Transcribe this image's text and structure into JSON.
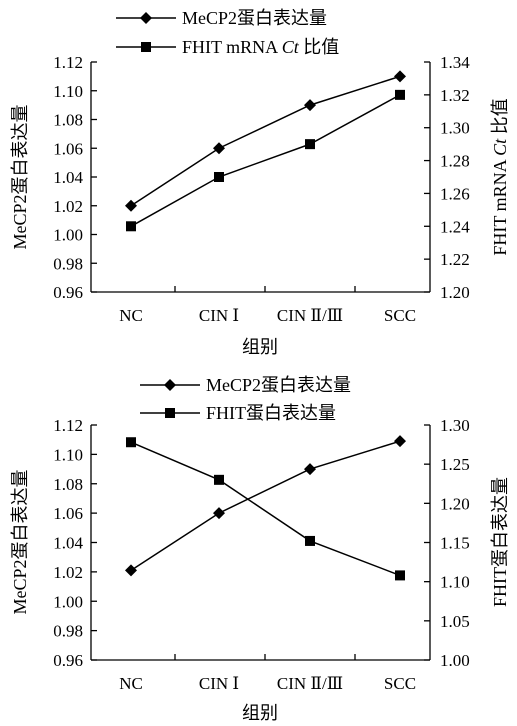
{
  "chart_data": [
    {
      "type": "line",
      "categories": [
        "NC",
        "CIN Ⅰ",
        "CIN Ⅱ/Ⅲ",
        "SCC"
      ],
      "xlabel": "组别",
      "ylabel_left": "MeCP2蛋白表达量",
      "ylabel_right_prefix": "FHIT mRNA ",
      "ylabel_right_italic": "Ct",
      "ylabel_right_suffix": " 比值",
      "ylim_left": [
        0.96,
        1.12
      ],
      "ylim_right": [
        1.2,
        1.34
      ],
      "yticks_left": [
        "0.96",
        "0.98",
        "1.00",
        "1.02",
        "1.04",
        "1.06",
        "1.08",
        "1.10",
        "1.12"
      ],
      "yticks_right": [
        "1.20",
        "1.22",
        "1.24",
        "1.26",
        "1.28",
        "1.30",
        "1.32",
        "1.34"
      ],
      "legend_position": "top",
      "series": [
        {
          "name": "MeCP2蛋白表达量",
          "axis": "left",
          "marker": "diamond",
          "values": [
            1.02,
            1.06,
            1.09,
            1.11
          ]
        },
        {
          "name_prefix": "FHIT mRNA ",
          "name_italic": "Ct",
          "name_suffix": " 比值",
          "axis": "right",
          "marker": "square",
          "values": [
            1.24,
            1.27,
            1.29,
            1.32
          ]
        }
      ]
    },
    {
      "type": "line",
      "categories": [
        "NC",
        "CIN Ⅰ",
        "CIN Ⅱ/Ⅲ",
        "SCC"
      ],
      "xlabel": "组别",
      "ylabel_left": "MeCP2蛋白表达量",
      "ylabel_right": "FHIT蛋白表达量",
      "ylim_left": [
        0.96,
        1.12
      ],
      "ylim_right": [
        1.0,
        1.3
      ],
      "yticks_left": [
        "0.96",
        "0.98",
        "1.00",
        "1.02",
        "1.04",
        "1.06",
        "1.08",
        "1.10",
        "1.12"
      ],
      "yticks_right": [
        "1.00",
        "1.05",
        "1.10",
        "1.15",
        "1.20",
        "1.25",
        "1.30"
      ],
      "legend_position": "top",
      "series": [
        {
          "name": "MeCP2蛋白表达量",
          "axis": "left",
          "marker": "diamond",
          "values": [
            1.021,
            1.06,
            1.09,
            1.109
          ]
        },
        {
          "name": "FHIT蛋白表达量",
          "axis": "right",
          "marker": "square",
          "values": [
            1.278,
            1.23,
            1.152,
            1.108
          ]
        }
      ]
    }
  ]
}
